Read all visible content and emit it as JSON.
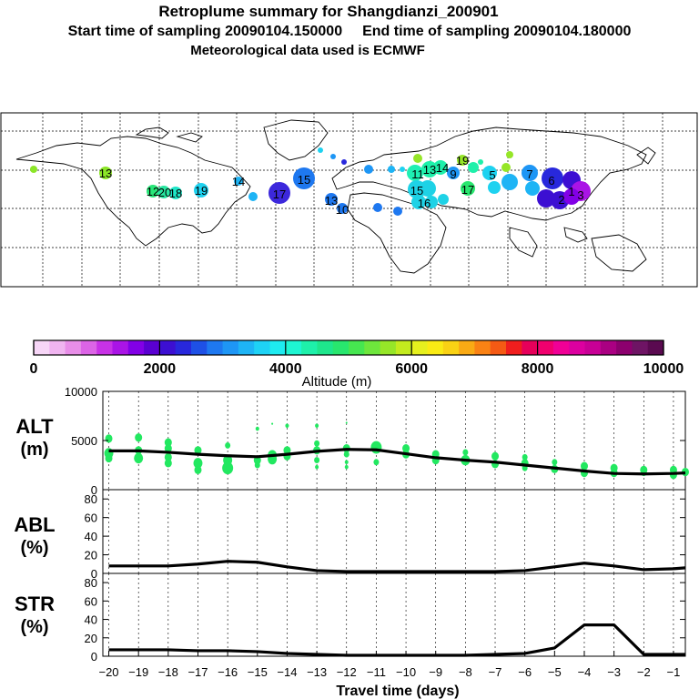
{
  "header": {
    "title": "Retroplume summary for Shangdianzi_200901",
    "start_label": "Start time of sampling 20090104.150000",
    "end_label": "End time of sampling 20090104.180000",
    "met_label": "Meteorological data used is ECMWF"
  },
  "colorbar": {
    "title": "Altitude (m)",
    "ticks": [
      "0",
      "2000",
      "4000",
      "6000",
      "8000",
      "10000"
    ],
    "colors": [
      "#f7d6f7",
      "#f0b4f0",
      "#e88ee8",
      "#dc64e6",
      "#c832e6",
      "#aa14e6",
      "#8200e6",
      "#5a00d2",
      "#3c0fd2",
      "#2828dc",
      "#1e50e6",
      "#1e78f0",
      "#1e96f5",
      "#1eb4f5",
      "#1ed2f5",
      "#1eebf0",
      "#1ef5d2",
      "#1ef0aa",
      "#1ee68c",
      "#28e66e",
      "#46e650",
      "#6ee63c",
      "#96e628",
      "#c3eb1e",
      "#e6f01e",
      "#faeb14",
      "#fad214",
      "#faaa14",
      "#fa8214",
      "#f55a14",
      "#f01e1e",
      "#e6005a",
      "#f0006e",
      "#f00096",
      "#dc00a0",
      "#c80096",
      "#aa0082",
      "#8c006e",
      "#6e1464",
      "#5a0a50"
    ]
  },
  "map": {
    "plume_labels": [
      {
        "t": "13",
        "c": "#8ce628"
      },
      {
        "t": "12",
        "c": "#28e678"
      },
      {
        "t": "20",
        "c": "#28e6a0"
      },
      {
        "t": "18",
        "c": "#1ee6c8"
      },
      {
        "t": "19",
        "c": "#1ed2f0"
      },
      {
        "t": "14",
        "c": "#1eb4f5"
      },
      {
        "t": "17",
        "c": "#3c28dc"
      },
      {
        "t": "15",
        "c": "#1e78f0"
      },
      {
        "t": "13",
        "c": "#1e78f0"
      },
      {
        "t": "10",
        "c": "#1e78f0"
      },
      {
        "t": "11",
        "c": "#1ef0b4"
      },
      {
        "t": "15",
        "c": "#1ed2e6"
      },
      {
        "t": "16",
        "c": "#1ed2e6"
      },
      {
        "t": "13",
        "c": "#1ef0aa"
      },
      {
        "t": "14",
        "c": "#1ef0aa"
      },
      {
        "t": "9",
        "c": "#1e96f5"
      },
      {
        "t": "17",
        "c": "#28e66e"
      },
      {
        "t": "19",
        "c": "#96e628"
      },
      {
        "t": "5",
        "c": "#1e96f5"
      },
      {
        "t": "7",
        "c": "#1e96f5"
      },
      {
        "t": "6",
        "c": "#2828dc"
      },
      {
        "t": "2",
        "c": "#3c0fd2"
      },
      {
        "t": "1",
        "c": "#3c0fd2"
      },
      {
        "t": "3",
        "c": "#aa14e6"
      }
    ]
  },
  "panels": {
    "alt": {
      "label1": "ALT",
      "label2": "(m)",
      "yticks": [
        "10000",
        "5000",
        "0"
      ]
    },
    "abl": {
      "label1": "ABL",
      "label2": "(%)",
      "yticks": [
        "80",
        "60",
        "40",
        "20",
        "0"
      ]
    },
    "str": {
      "label1": "STR",
      "label2": "(%)",
      "yticks": [
        "80",
        "60",
        "40",
        "20",
        "0"
      ]
    }
  },
  "chart_data": {
    "type": "line",
    "title": "Retroplume summary for Shangdianzi_200901",
    "xlabel": "Travel time (days)",
    "x": [
      -20,
      -19,
      -18,
      -17,
      -16,
      -15,
      -14,
      -13,
      -12,
      -11,
      -10,
      -9,
      -8,
      -7,
      -6,
      -5,
      -4,
      -3,
      -2,
      -1
    ],
    "xlim": [
      -20.2,
      -0.6
    ],
    "series": [
      {
        "name": "ALT (m)",
        "ylim": [
          0,
          10000
        ],
        "x": [
          -20,
          -19,
          -18,
          -17,
          -16,
          -15,
          -14,
          -13,
          -12,
          -11,
          -10,
          -9,
          -8,
          -7,
          -6,
          -5,
          -4,
          -3,
          -2,
          -1,
          -0.6
        ],
        "values": [
          3950,
          3950,
          3800,
          3600,
          3450,
          3350,
          3600,
          3900,
          4100,
          4050,
          3650,
          3250,
          3000,
          2800,
          2500,
          2200,
          1900,
          1650,
          1600,
          1650,
          1700
        ]
      },
      {
        "name": "ABL (%)",
        "ylim": [
          0,
          90
        ],
        "x": [
          -20,
          -19,
          -18,
          -17,
          -16,
          -15,
          -14,
          -13,
          -12,
          -11,
          -10,
          -9,
          -8,
          -7,
          -6,
          -5,
          -4,
          -3,
          -2,
          -1,
          -0.6
        ],
        "values": [
          8,
          8,
          8,
          10,
          13,
          12,
          7,
          3,
          2,
          2,
          2,
          2,
          2,
          2,
          3,
          7,
          11,
          8,
          4,
          5,
          6
        ]
      },
      {
        "name": "STR (%)",
        "ylim": [
          0,
          90
        ],
        "x": [
          -20,
          -19,
          -18,
          -17,
          -16,
          -15,
          -14,
          -13,
          -12,
          -11,
          -10,
          -9,
          -8,
          -7,
          -6,
          -5,
          -4,
          -3,
          -2,
          -1,
          -0.6
        ],
        "values": [
          7,
          7,
          7,
          6,
          6,
          5,
          3,
          2,
          1,
          1,
          1,
          1,
          1,
          2,
          3,
          9,
          34,
          34,
          2,
          2,
          2
        ]
      }
    ],
    "alt_points": [
      {
        "x": -20,
        "y": 5200,
        "r": 4
      },
      {
        "x": -20,
        "y": 3700,
        "r": 5
      },
      {
        "x": -20,
        "y": 3200,
        "r": 4
      },
      {
        "x": -19,
        "y": 5300,
        "r": 4
      },
      {
        "x": -19,
        "y": 4000,
        "r": 4
      },
      {
        "x": -19,
        "y": 3200,
        "r": 5
      },
      {
        "x": -18,
        "y": 4800,
        "r": 4
      },
      {
        "x": -18,
        "y": 4200,
        "r": 4
      },
      {
        "x": -18,
        "y": 3300,
        "r": 4
      },
      {
        "x": -18,
        "y": 2700,
        "r": 4
      },
      {
        "x": -17,
        "y": 4000,
        "r": 4
      },
      {
        "x": -17,
        "y": 2700,
        "r": 5
      },
      {
        "x": -17,
        "y": 2000,
        "r": 4
      },
      {
        "x": -16,
        "y": 4500,
        "r": 3
      },
      {
        "x": -16,
        "y": 3000,
        "r": 5
      },
      {
        "x": -16,
        "y": 2200,
        "r": 6
      },
      {
        "x": -15,
        "y": 6200,
        "r": 2
      },
      {
        "x": -15,
        "y": 3000,
        "r": 4
      },
      {
        "x": -15,
        "y": 2500,
        "r": 3
      },
      {
        "x": -14.5,
        "y": 6700,
        "r": 1
      },
      {
        "x": -14.5,
        "y": 3500,
        "r": 5
      },
      {
        "x": -14.5,
        "y": 3100,
        "r": 5
      },
      {
        "x": -14,
        "y": 6500,
        "r": 2
      },
      {
        "x": -14,
        "y": 4000,
        "r": 4
      },
      {
        "x": -14,
        "y": 3400,
        "r": 4
      },
      {
        "x": -13,
        "y": 6500,
        "r": 2
      },
      {
        "x": -13,
        "y": 4700,
        "r": 3
      },
      {
        "x": -13,
        "y": 4000,
        "r": 4
      },
      {
        "x": -13,
        "y": 3000,
        "r": 3
      },
      {
        "x": -13,
        "y": 2300,
        "r": 2
      },
      {
        "x": -12,
        "y": 6800,
        "r": 1
      },
      {
        "x": -12,
        "y": 4200,
        "r": 4
      },
      {
        "x": -12,
        "y": 3600,
        "r": 3
      },
      {
        "x": -12,
        "y": 2800,
        "r": 2
      },
      {
        "x": -12,
        "y": 2300,
        "r": 2
      },
      {
        "x": -11,
        "y": 4300,
        "r": 6
      },
      {
        "x": -11,
        "y": 2800,
        "r": 3
      },
      {
        "x": -10,
        "y": 4200,
        "r": 4
      },
      {
        "x": -10,
        "y": 3600,
        "r": 4
      },
      {
        "x": -9,
        "y": 3600,
        "r": 4
      },
      {
        "x": -9,
        "y": 3000,
        "r": 4
      },
      {
        "x": -8,
        "y": 3800,
        "r": 3
      },
      {
        "x": -8,
        "y": 3000,
        "r": 5
      },
      {
        "x": -7,
        "y": 3400,
        "r": 4
      },
      {
        "x": -7,
        "y": 2600,
        "r": 4
      },
      {
        "x": -6,
        "y": 3300,
        "r": 3
      },
      {
        "x": -6,
        "y": 2700,
        "r": 4
      },
      {
        "x": -6,
        "y": 2200,
        "r": 3
      },
      {
        "x": -5,
        "y": 2800,
        "r": 3
      },
      {
        "x": -5,
        "y": 2100,
        "r": 4
      },
      {
        "x": -4,
        "y": 2400,
        "r": 4
      },
      {
        "x": -4,
        "y": 1700,
        "r": 4
      },
      {
        "x": -3,
        "y": 2200,
        "r": 4
      },
      {
        "x": -3,
        "y": 1700,
        "r": 4
      },
      {
        "x": -2,
        "y": 2000,
        "r": 4
      },
      {
        "x": -2,
        "y": 1700,
        "r": 3
      },
      {
        "x": -1,
        "y": 2000,
        "r": 4
      },
      {
        "x": -1,
        "y": 1500,
        "r": 4
      },
      {
        "x": -0.6,
        "y": 1800,
        "r": 4
      }
    ]
  }
}
